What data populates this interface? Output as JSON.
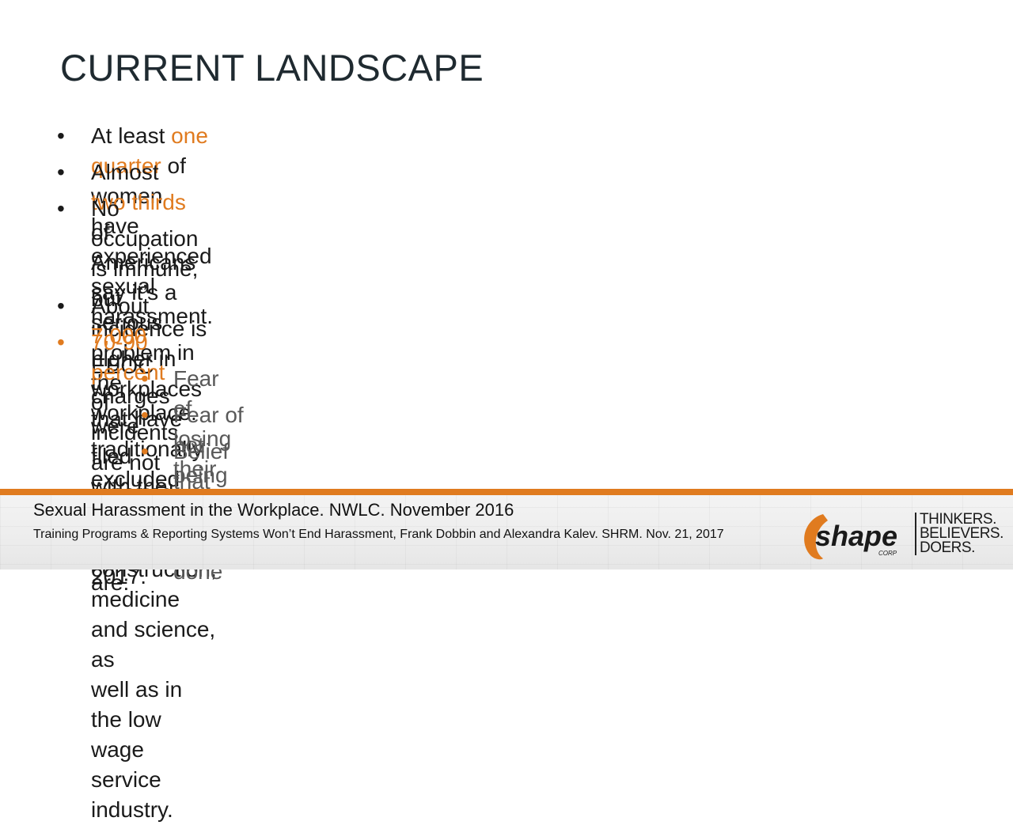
{
  "slide": {
    "title": "CURRENT LANDSCAPE"
  },
  "bullets": {
    "b1": {
      "pre": "At least ",
      "hl": "one quarter",
      "post": " of women have experienced sexual harassment."
    },
    "b2": {
      "pre": "Almost ",
      "hl": "two thirds",
      "post": " of Americans say it’s a serious problem in the workplace."
    },
    "b3": {
      "line1": "No occupation is immune, but incidence is higher in workplaces that have",
      "line2": "traditionally excluded women, e.g., construction, medicine and science, as",
      "line3": "well as in the low wage service industry."
    },
    "b4": {
      "pre": "About ",
      "hl": "7,000",
      "post": " EEOC charges were filed with the EEOC in 2017."
    },
    "b5": {
      "hl": "70-90 percent",
      "post": " of incidents are not reported. Reasons cited are:"
    },
    "sub": [
      "Fear of losing their jobs",
      "Fear of not being believed",
      "Belief that nothing will be done"
    ],
    "bullet_char": "•"
  },
  "footer": {
    "source1": "Sexual Harassment in the Workplace. NWLC. November 2016",
    "source2": "Training Programs & Reporting Systems Won’t End Harassment, Frank Dobbin and Alexandra Kalev. SHRM. Nov. 21, 2017",
    "logo_text": "shape",
    "logo_sub": "CORP",
    "tagline": [
      "THINKERS.",
      "BELIEVERS.",
      "DOERS."
    ]
  },
  "colors": {
    "accent": "#e07b1f",
    "title": "#1f2a30",
    "sub_text": "#595959"
  }
}
